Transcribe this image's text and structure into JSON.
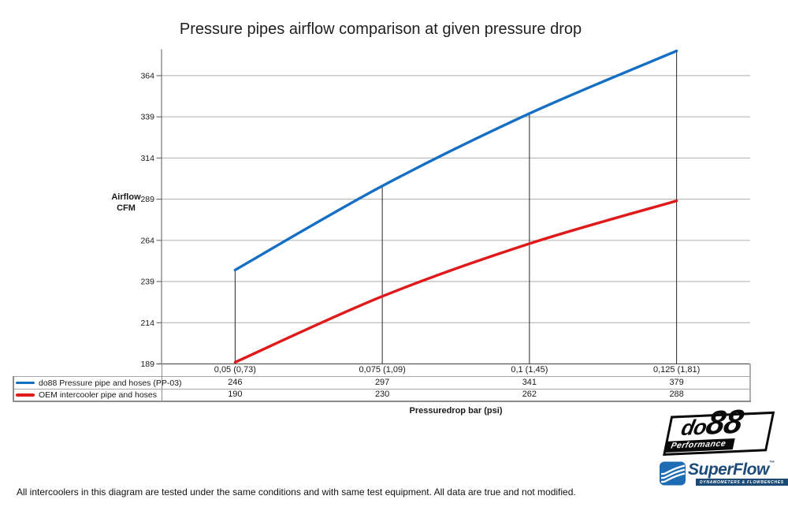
{
  "title": "Pressure pipes airflow comparison at given pressure drop",
  "chart_data": {
    "type": "line",
    "smooth": true,
    "grid": true,
    "drop_lines": true,
    "legend_position": "table-left",
    "categories": [
      "0,05 (0,73)",
      "0,075 (1,09)",
      "0,1 (1,45)",
      "0,125 (1,81)"
    ],
    "series": [
      {
        "name": "do88 Pressure pipe and hoses (PP-03)",
        "values": [
          246,
          297,
          341,
          379
        ],
        "color": "#156fc4"
      },
      {
        "name": "OEM intercooler pipe and hoses",
        "values": [
          190,
          230,
          262,
          288
        ],
        "color": "#e01a1a"
      }
    ],
    "ylabel_lines": [
      "Airflow",
      "CFM"
    ],
    "xlabel": "Pressuredrop bar (psi)",
    "yticks": [
      364,
      339,
      314,
      289,
      264,
      239,
      214,
      189
    ],
    "ylim": [
      189,
      380
    ],
    "grid_color": "#adadad",
    "axis_color": "#595959",
    "drop_line_color": "#262626"
  },
  "footer": {
    "note": "All intercoolers in this diagram are tested under the same conditions and with same test equipment. All data are true and not modified."
  },
  "logos": {
    "do88": {
      "part1": "do",
      "part2": "88",
      "sub": "Performance"
    },
    "superflow": {
      "name": "SuperFlow",
      "mark": "™",
      "sub": "DYNAMOMETERS & FLOWBENCHES"
    }
  }
}
